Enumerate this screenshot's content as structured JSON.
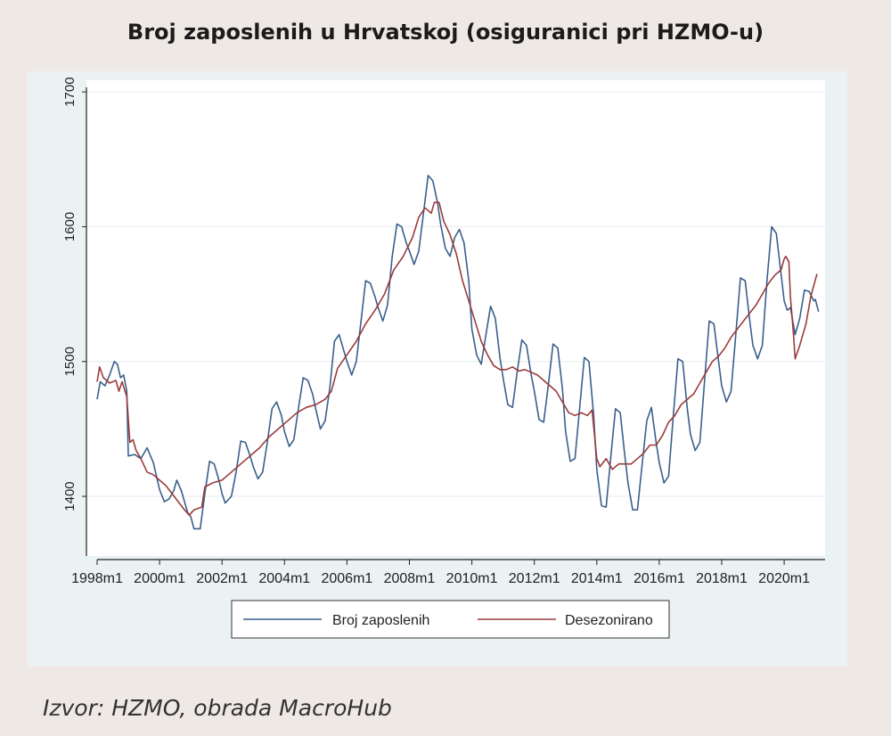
{
  "title": "Broj zaposlenih u Hrvatskoj (osiguranici pri HZMO-u)",
  "source": "Izvor: HZMO, obrada MacroHub",
  "chart_data": {
    "type": "line",
    "title": "Broj zaposlenih u Hrvatskoj (osiguranici pri HZMO-u)",
    "xlabel": "",
    "ylabel": "",
    "ylim": [
      1365,
      1710
    ],
    "yticks": [
      1400,
      1500,
      1600,
      1700
    ],
    "xlim": [
      1998.0,
      2021.25
    ],
    "xticks": [
      {
        "value": 1998,
        "label": "1998m1"
      },
      {
        "value": 2000,
        "label": "2000m1"
      },
      {
        "value": 2002,
        "label": "2002m1"
      },
      {
        "value": 2004,
        "label": "2004m1"
      },
      {
        "value": 2006,
        "label": "2006m1"
      },
      {
        "value": 2008,
        "label": "2008m1"
      },
      {
        "value": 2010,
        "label": "2010m1"
      },
      {
        "value": 2012,
        "label": "2012m1"
      },
      {
        "value": 2014,
        "label": "2014m1"
      },
      {
        "value": 2016,
        "label": "2016m1"
      },
      {
        "value": 2018,
        "label": "2018m1"
      },
      {
        "value": 2020,
        "label": "2020m1"
      }
    ],
    "grid": true,
    "legend_position": "bottom",
    "series": [
      {
        "name": "Broj zaposlenih",
        "color": "#3a5f8c",
        "points": [
          [
            1998.0,
            1472
          ],
          [
            1998.1,
            1485
          ],
          [
            1998.25,
            1482
          ],
          [
            1998.4,
            1490
          ],
          [
            1998.55,
            1500
          ],
          [
            1998.65,
            1498
          ],
          [
            1998.75,
            1488
          ],
          [
            1998.85,
            1490
          ],
          [
            1998.95,
            1478
          ],
          [
            1999.0,
            1430
          ],
          [
            1999.2,
            1431
          ],
          [
            1999.4,
            1428
          ],
          [
            1999.6,
            1436
          ],
          [
            1999.8,
            1425
          ],
          [
            2000.0,
            1405
          ],
          [
            2000.15,
            1396
          ],
          [
            2000.3,
            1398
          ],
          [
            2000.45,
            1404
          ],
          [
            2000.55,
            1412
          ],
          [
            2000.7,
            1404
          ],
          [
            2000.9,
            1388
          ],
          [
            2001.0,
            1385
          ],
          [
            2001.1,
            1376
          ],
          [
            2001.3,
            1376
          ],
          [
            2001.45,
            1402
          ],
          [
            2001.6,
            1426
          ],
          [
            2001.75,
            1424
          ],
          [
            2001.9,
            1412
          ],
          [
            2002.0,
            1402
          ],
          [
            2002.1,
            1395
          ],
          [
            2002.3,
            1400
          ],
          [
            2002.45,
            1418
          ],
          [
            2002.6,
            1441
          ],
          [
            2002.75,
            1440
          ],
          [
            2002.9,
            1430
          ],
          [
            2003.0,
            1422
          ],
          [
            2003.15,
            1413
          ],
          [
            2003.3,
            1418
          ],
          [
            2003.45,
            1440
          ],
          [
            2003.6,
            1465
          ],
          [
            2003.75,
            1470
          ],
          [
            2003.9,
            1460
          ],
          [
            2004.0,
            1448
          ],
          [
            2004.15,
            1437
          ],
          [
            2004.3,
            1442
          ],
          [
            2004.45,
            1466
          ],
          [
            2004.6,
            1488
          ],
          [
            2004.75,
            1486
          ],
          [
            2004.9,
            1476
          ],
          [
            2005.0,
            1465
          ],
          [
            2005.15,
            1450
          ],
          [
            2005.3,
            1456
          ],
          [
            2005.45,
            1480
          ],
          [
            2005.6,
            1515
          ],
          [
            2005.75,
            1520
          ],
          [
            2005.9,
            1508
          ],
          [
            2006.0,
            1500
          ],
          [
            2006.15,
            1490
          ],
          [
            2006.3,
            1500
          ],
          [
            2006.45,
            1530
          ],
          [
            2006.6,
            1560
          ],
          [
            2006.75,
            1558
          ],
          [
            2006.9,
            1548
          ],
          [
            2007.0,
            1540
          ],
          [
            2007.15,
            1530
          ],
          [
            2007.3,
            1542
          ],
          [
            2007.45,
            1578
          ],
          [
            2007.6,
            1602
          ],
          [
            2007.75,
            1600
          ],
          [
            2007.9,
            1588
          ],
          [
            2008.0,
            1582
          ],
          [
            2008.15,
            1572
          ],
          [
            2008.3,
            1582
          ],
          [
            2008.45,
            1610
          ],
          [
            2008.6,
            1638
          ],
          [
            2008.75,
            1634
          ],
          [
            2008.9,
            1618
          ],
          [
            2009.0,
            1602
          ],
          [
            2009.15,
            1584
          ],
          [
            2009.3,
            1578
          ],
          [
            2009.45,
            1592
          ],
          [
            2009.6,
            1598
          ],
          [
            2009.75,
            1588
          ],
          [
            2009.9,
            1560
          ],
          [
            2010.0,
            1524
          ],
          [
            2010.15,
            1505
          ],
          [
            2010.3,
            1498
          ],
          [
            2010.45,
            1520
          ],
          [
            2010.6,
            1541
          ],
          [
            2010.75,
            1532
          ],
          [
            2010.9,
            1503
          ],
          [
            2011.0,
            1488
          ],
          [
            2011.15,
            1468
          ],
          [
            2011.3,
            1466
          ],
          [
            2011.45,
            1492
          ],
          [
            2011.6,
            1516
          ],
          [
            2011.75,
            1512
          ],
          [
            2011.9,
            1490
          ],
          [
            2012.0,
            1478
          ],
          [
            2012.15,
            1457
          ],
          [
            2012.3,
            1455
          ],
          [
            2012.45,
            1483
          ],
          [
            2012.6,
            1513
          ],
          [
            2012.75,
            1510
          ],
          [
            2012.9,
            1480
          ],
          [
            2013.0,
            1448
          ],
          [
            2013.15,
            1426
          ],
          [
            2013.3,
            1428
          ],
          [
            2013.45,
            1465
          ],
          [
            2013.6,
            1503
          ],
          [
            2013.75,
            1500
          ],
          [
            2013.9,
            1460
          ],
          [
            2014.0,
            1420
          ],
          [
            2014.15,
            1393
          ],
          [
            2014.3,
            1392
          ],
          [
            2014.45,
            1430
          ],
          [
            2014.6,
            1465
          ],
          [
            2014.75,
            1462
          ],
          [
            2014.9,
            1430
          ],
          [
            2015.0,
            1410
          ],
          [
            2015.15,
            1390
          ],
          [
            2015.3,
            1390
          ],
          [
            2015.45,
            1423
          ],
          [
            2015.6,
            1456
          ],
          [
            2015.75,
            1466
          ],
          [
            2015.9,
            1440
          ],
          [
            2016.0,
            1425
          ],
          [
            2016.15,
            1410
          ],
          [
            2016.3,
            1415
          ],
          [
            2016.45,
            1460
          ],
          [
            2016.6,
            1502
          ],
          [
            2016.75,
            1500
          ],
          [
            2016.9,
            1465
          ],
          [
            2017.0,
            1446
          ],
          [
            2017.15,
            1434
          ],
          [
            2017.3,
            1440
          ],
          [
            2017.45,
            1485
          ],
          [
            2017.6,
            1530
          ],
          [
            2017.75,
            1528
          ],
          [
            2017.9,
            1500
          ],
          [
            2018.0,
            1482
          ],
          [
            2018.15,
            1470
          ],
          [
            2018.3,
            1478
          ],
          [
            2018.45,
            1520
          ],
          [
            2018.6,
            1562
          ],
          [
            2018.75,
            1560
          ],
          [
            2018.9,
            1530
          ],
          [
            2019.0,
            1512
          ],
          [
            2019.15,
            1502
          ],
          [
            2019.3,
            1512
          ],
          [
            2019.45,
            1560
          ],
          [
            2019.6,
            1600
          ],
          [
            2019.75,
            1595
          ],
          [
            2019.9,
            1565
          ],
          [
            2020.0,
            1545
          ],
          [
            2020.1,
            1538
          ],
          [
            2020.2,
            1540
          ],
          [
            2020.35,
            1520
          ],
          [
            2020.5,
            1532
          ],
          [
            2020.65,
            1553
          ],
          [
            2020.8,
            1552
          ],
          [
            2020.95,
            1545
          ],
          [
            2021.0,
            1546
          ],
          [
            2021.1,
            1537
          ]
        ]
      },
      {
        "name": "Desezonirano",
        "color": "#9b3b3b",
        "points": [
          [
            1998.0,
            1485
          ],
          [
            1998.08,
            1496
          ],
          [
            1998.2,
            1488
          ],
          [
            1998.4,
            1484
          ],
          [
            1998.6,
            1486
          ],
          [
            1998.7,
            1478
          ],
          [
            1998.8,
            1485
          ],
          [
            1998.95,
            1474
          ],
          [
            1999.05,
            1440
          ],
          [
            1999.15,
            1442
          ],
          [
            1999.25,
            1434
          ],
          [
            1999.4,
            1428
          ],
          [
            1999.6,
            1418
          ],
          [
            1999.8,
            1416
          ],
          [
            2000.0,
            1412
          ],
          [
            2000.2,
            1408
          ],
          [
            2000.4,
            1402
          ],
          [
            2000.6,
            1396
          ],
          [
            2000.8,
            1390
          ],
          [
            2000.95,
            1386
          ],
          [
            2001.1,
            1390
          ],
          [
            2001.35,
            1392
          ],
          [
            2001.45,
            1407
          ],
          [
            2001.7,
            1410
          ],
          [
            2002.0,
            1412
          ],
          [
            2002.3,
            1418
          ],
          [
            2002.6,
            1424
          ],
          [
            2002.9,
            1430
          ],
          [
            2003.2,
            1436
          ],
          [
            2003.5,
            1444
          ],
          [
            2003.8,
            1450
          ],
          [
            2004.1,
            1456
          ],
          [
            2004.4,
            1462
          ],
          [
            2004.7,
            1466
          ],
          [
            2005.0,
            1468
          ],
          [
            2005.3,
            1472
          ],
          [
            2005.5,
            1478
          ],
          [
            2005.7,
            1495
          ],
          [
            2006.0,
            1505
          ],
          [
            2006.3,
            1515
          ],
          [
            2006.6,
            1528
          ],
          [
            2006.9,
            1538
          ],
          [
            2007.2,
            1550
          ],
          [
            2007.5,
            1568
          ],
          [
            2007.8,
            1578
          ],
          [
            2008.1,
            1592
          ],
          [
            2008.3,
            1607
          ],
          [
            2008.5,
            1614
          ],
          [
            2008.7,
            1610
          ],
          [
            2008.8,
            1618
          ],
          [
            2008.95,
            1618
          ],
          [
            2009.1,
            1604
          ],
          [
            2009.3,
            1594
          ],
          [
            2009.5,
            1580
          ],
          [
            2009.7,
            1560
          ],
          [
            2009.9,
            1545
          ],
          [
            2010.1,
            1530
          ],
          [
            2010.3,
            1515
          ],
          [
            2010.5,
            1505
          ],
          [
            2010.7,
            1497
          ],
          [
            2010.9,
            1494
          ],
          [
            2011.1,
            1494
          ],
          [
            2011.3,
            1496
          ],
          [
            2011.5,
            1493
          ],
          [
            2011.7,
            1494
          ],
          [
            2011.9,
            1492
          ],
          [
            2012.1,
            1490
          ],
          [
            2012.3,
            1486
          ],
          [
            2012.5,
            1482
          ],
          [
            2012.7,
            1478
          ],
          [
            2012.9,
            1470
          ],
          [
            2013.1,
            1462
          ],
          [
            2013.3,
            1460
          ],
          [
            2013.5,
            1462
          ],
          [
            2013.7,
            1460
          ],
          [
            2013.85,
            1464
          ],
          [
            2014.0,
            1428
          ],
          [
            2014.1,
            1422
          ],
          [
            2014.3,
            1428
          ],
          [
            2014.5,
            1420
          ],
          [
            2014.7,
            1424
          ],
          [
            2014.9,
            1424
          ],
          [
            2015.1,
            1424
          ],
          [
            2015.3,
            1428
          ],
          [
            2015.5,
            1432
          ],
          [
            2015.7,
            1438
          ],
          [
            2015.9,
            1438
          ],
          [
            2016.1,
            1445
          ],
          [
            2016.3,
            1455
          ],
          [
            2016.5,
            1460
          ],
          [
            2016.7,
            1468
          ],
          [
            2016.9,
            1472
          ],
          [
            2017.1,
            1476
          ],
          [
            2017.3,
            1484
          ],
          [
            2017.5,
            1492
          ],
          [
            2017.7,
            1500
          ],
          [
            2017.9,
            1504
          ],
          [
            2018.1,
            1510
          ],
          [
            2018.3,
            1518
          ],
          [
            2018.5,
            1524
          ],
          [
            2018.7,
            1530
          ],
          [
            2018.9,
            1536
          ],
          [
            2019.1,
            1542
          ],
          [
            2019.3,
            1550
          ],
          [
            2019.5,
            1558
          ],
          [
            2019.7,
            1564
          ],
          [
            2019.9,
            1568
          ],
          [
            2020.0,
            1576
          ],
          [
            2020.05,
            1578
          ],
          [
            2020.15,
            1574
          ],
          [
            2020.2,
            1548
          ],
          [
            2020.3,
            1520
          ],
          [
            2020.35,
            1502
          ],
          [
            2020.5,
            1512
          ],
          [
            2020.7,
            1528
          ],
          [
            2020.85,
            1548
          ],
          [
            2021.05,
            1565
          ]
        ]
      }
    ]
  }
}
